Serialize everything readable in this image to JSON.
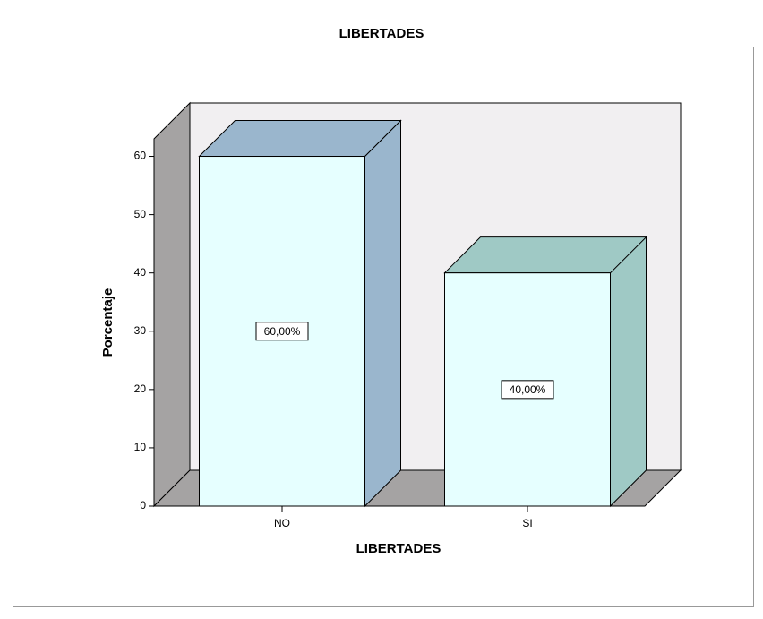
{
  "chart_data": {
    "type": "bar3d",
    "title": "LIBERTADES",
    "x_label": "LIBERTADES",
    "y_label": "Porcentaje",
    "categories": [
      "NO",
      "SI"
    ],
    "values": [
      60,
      40
    ],
    "value_labels": [
      "60,00%",
      "40,00%"
    ],
    "face_color": "#e6ffff",
    "colors": [
      "#9ab6cd",
      "#9fc9c5"
    ],
    "ylim": [
      0,
      63
    ],
    "yticks": [
      0,
      10,
      20,
      30,
      40,
      50,
      60
    ]
  }
}
